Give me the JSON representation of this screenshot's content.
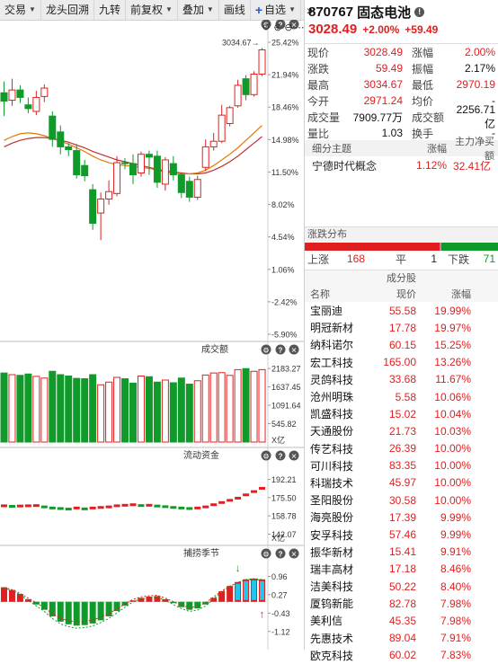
{
  "toolbar": {
    "items": [
      {
        "label": "交易",
        "caret": true
      },
      {
        "label": "龙头回溯",
        "caret": false
      },
      {
        "label": "九转",
        "caret": false
      },
      {
        "label": "前复权",
        "caret": true
      },
      {
        "label": "叠加",
        "caret": true
      },
      {
        "label": "画线",
        "caret": false
      }
    ],
    "zixuan_label": "自选",
    "more_label": "»"
  },
  "colors": {
    "up": "#e02020",
    "down": "#109a2a",
    "ma_short": "#e07b00",
    "ma_long": "#c0303a"
  },
  "chart_data": [
    {
      "type": "candlestick",
      "title": "",
      "y_tick_labels": [
        "25.42%",
        "21.94%",
        "18.46%",
        "14.98%",
        "11.50%",
        "8.02%",
        "4.54%",
        "1.06%",
        "-2.42%",
        "-5.90%"
      ],
      "ylim": [
        -5.9,
        25.42
      ],
      "high_marker": "3034.67",
      "candles": [
        {
          "o": 20.0,
          "c": 19.1,
          "h": 21.2,
          "l": 17.5
        },
        {
          "o": 19.2,
          "c": 20.3,
          "h": 21.5,
          "l": 18.6
        },
        {
          "o": 20.3,
          "c": 19.5,
          "h": 20.8,
          "l": 18.9
        },
        {
          "o": 18.7,
          "c": 18.3,
          "h": 19.5,
          "l": 17.8
        },
        {
          "o": 18.0,
          "c": 19.5,
          "h": 20.2,
          "l": 17.6
        },
        {
          "o": 19.6,
          "c": 20.5,
          "h": 20.9,
          "l": 19.0
        },
        {
          "o": 17.5,
          "c": 15.0,
          "h": 18.0,
          "l": 14.2
        },
        {
          "o": 15.8,
          "c": 14.2,
          "h": 16.5,
          "l": 13.4
        },
        {
          "o": 14.2,
          "c": 13.9,
          "h": 14.6,
          "l": 13.2
        },
        {
          "o": 13.8,
          "c": 11.2,
          "h": 14.5,
          "l": 10.8
        },
        {
          "o": 12.2,
          "c": 11.1,
          "h": 12.8,
          "l": 10.5
        },
        {
          "o": 9.6,
          "c": 6.0,
          "h": 10.2,
          "l": 5.3
        },
        {
          "o": 7.1,
          "c": 8.6,
          "h": 9.3,
          "l": 4.2
        },
        {
          "o": 8.6,
          "c": 9.4,
          "h": 10.6,
          "l": 8.0
        },
        {
          "o": 9.2,
          "c": 12.5,
          "h": 13.2,
          "l": 8.9
        },
        {
          "o": 12.5,
          "c": 12.4,
          "h": 13.0,
          "l": 11.8
        },
        {
          "o": 12.4,
          "c": 11.2,
          "h": 13.4,
          "l": 10.2
        },
        {
          "o": 11.4,
          "c": 13.4,
          "h": 13.7,
          "l": 11.0
        },
        {
          "o": 13.4,
          "c": 13.1,
          "h": 13.8,
          "l": 11.2
        },
        {
          "o": 13.2,
          "c": 10.4,
          "h": 13.8,
          "l": 9.8
        },
        {
          "o": 10.2,
          "c": 12.8,
          "h": 13.1,
          "l": 9.5
        },
        {
          "o": 12.4,
          "c": 11.2,
          "h": 13.2,
          "l": 10.6
        },
        {
          "o": 11.2,
          "c": 9.3,
          "h": 11.4,
          "l": 8.7
        },
        {
          "o": 10.5,
          "c": 8.8,
          "h": 11.0,
          "l": 8.3
        },
        {
          "o": 8.8,
          "c": 10.7,
          "h": 11.1,
          "l": 8.5
        },
        {
          "o": 12.0,
          "c": 14.2,
          "h": 15.0,
          "l": 11.6
        },
        {
          "o": 14.2,
          "c": 14.8,
          "h": 15.7,
          "l": 13.8
        },
        {
          "o": 14.8,
          "c": 17.6,
          "h": 18.7,
          "l": 14.6
        },
        {
          "o": 16.7,
          "c": 18.4,
          "h": 18.6,
          "l": 16.4
        },
        {
          "o": 18.6,
          "c": 20.8,
          "h": 21.4,
          "l": 18.4
        },
        {
          "o": 21.5,
          "c": 19.8,
          "h": 21.9,
          "l": 19.2
        },
        {
          "o": 19.8,
          "c": 22.0,
          "h": 22.3,
          "l": 19.6
        },
        {
          "o": 22.0,
          "c": 24.6,
          "h": 24.8,
          "l": 21.8
        }
      ],
      "ma_short": [
        14.9,
        15.3,
        15.6,
        15.7,
        15.6,
        15.4,
        15.1,
        14.8,
        14.5,
        14.1,
        13.7,
        13.2,
        12.8,
        12.5,
        12.3,
        12.2,
        12.1,
        12.0,
        11.9,
        11.7,
        11.5,
        11.4,
        11.3,
        11.3,
        11.4,
        11.7,
        12.2,
        12.8,
        13.4,
        14.1,
        14.9,
        15.7,
        16.5
      ],
      "ma_long": [
        14.2,
        14.6,
        14.9,
        15.1,
        15.2,
        15.2,
        15.1,
        14.9,
        14.7,
        14.4,
        14.1,
        13.7,
        13.4,
        13.1,
        12.8,
        12.6,
        12.4,
        12.2,
        12.0,
        11.8,
        11.6,
        11.5,
        11.4,
        11.3,
        11.3,
        11.4,
        11.7,
        12.1,
        12.6,
        13.2,
        13.9,
        14.6,
        15.3
      ]
    },
    {
      "type": "bar",
      "title": "成交额",
      "y_tick_labels": [
        "2183.27",
        "1637.45",
        "1091.64",
        "545.82"
      ],
      "unit_label": "X亿",
      "ylim": [
        0,
        2400
      ],
      "values": [
        2050,
        2000,
        1980,
        2020,
        1950,
        1900,
        2100,
        2000,
        1960,
        1890,
        1880,
        2000,
        1700,
        1780,
        1920,
        1880,
        1750,
        1960,
        1940,
        1780,
        1840,
        1760,
        1900,
        1720,
        1820,
        1990,
        2050,
        2060,
        1980,
        2150,
        2180,
        2100,
        2150
      ],
      "up": [
        false,
        true,
        false,
        false,
        true,
        true,
        false,
        false,
        false,
        false,
        false,
        false,
        true,
        true,
        true,
        false,
        false,
        true,
        false,
        false,
        true,
        false,
        false,
        false,
        true,
        true,
        true,
        true,
        true,
        true,
        false,
        true,
        true
      ]
    },
    {
      "type": "bar",
      "title": "流动资金",
      "y_tick_labels": [
        "192.21",
        "175.50",
        "158.78",
        "142.07"
      ],
      "unit_label": "X亿",
      "ylim": [
        140,
        200
      ],
      "values": [
        168,
        167.5,
        167.8,
        168,
        168.2,
        167,
        166,
        165.5,
        165,
        166,
        165.2,
        166,
        166.5,
        167,
        168,
        168.5,
        169,
        168.2,
        168.5,
        167.8,
        167.2,
        166.5,
        166,
        165.5,
        166,
        167,
        169,
        171,
        173,
        175,
        178,
        181,
        184
      ],
      "up": [
        true,
        false,
        true,
        true,
        true,
        false,
        false,
        false,
        false,
        true,
        false,
        true,
        true,
        true,
        true,
        true,
        true,
        false,
        true,
        false,
        false,
        false,
        false,
        false,
        true,
        true,
        true,
        true,
        true,
        true,
        true,
        true,
        true
      ]
    },
    {
      "type": "bar",
      "title": "捕捞季节",
      "y_tick_labels": [
        "0.96",
        "0.27",
        "-0.43",
        "-1.12"
      ],
      "ylim": [
        -1.4,
        1.25
      ],
      "values": [
        0.55,
        0.45,
        0.3,
        0.1,
        -0.1,
        -0.3,
        -0.55,
        -0.75,
        -0.85,
        -0.9,
        -0.88,
        -0.82,
        -0.7,
        -0.55,
        -0.35,
        -0.15,
        0.05,
        0.15,
        0.2,
        0.22,
        0.1,
        -0.05,
        -0.2,
        -0.3,
        -0.25,
        -0.1,
        0.15,
        0.4,
        0.6,
        0.75,
        0.85,
        0.88,
        0.85
      ]
    }
  ],
  "quote": {
    "code": "870767",
    "name": "固态电池",
    "price": "3028.49",
    "pct": "+2.00%",
    "change": "+59.49",
    "rows": [
      {
        "l1": "现价",
        "v1": "3028.49",
        "c1": "red",
        "l2": "涨幅",
        "v2": "2.00%",
        "c2": "red"
      },
      {
        "l1": "涨跌",
        "v1": "59.49",
        "c1": "red",
        "l2": "振幅",
        "v2": "2.17%",
        "c2": "blk"
      },
      {
        "l1": "最高",
        "v1": "3034.67",
        "c1": "red",
        "l2": "最低",
        "v2": "2970.19",
        "c2": "red"
      },
      {
        "l1": "今开",
        "v1": "2971.24",
        "c1": "red",
        "l2": "均价",
        "v2": "-",
        "c2": "blk"
      },
      {
        "l1": "成交量",
        "v1": "7909.77万",
        "c1": "blk",
        "l2": "成交额",
        "v2": "2256.71亿",
        "c2": "blk"
      },
      {
        "l1": "量比",
        "v1": "1.03",
        "c1": "blk",
        "l2": "换手",
        "v2": "-",
        "c2": "blk"
      }
    ]
  },
  "theme": {
    "head_col1": "细分主题",
    "head_col2": "涨幅",
    "head_col3": "主力净买额",
    "row_name": "宁德时代概念",
    "row_pct": "1.12%",
    "row_net": "32.41亿"
  },
  "distribution": {
    "title": "涨跌分布",
    "up_label": "上涨",
    "up_count": "168",
    "flat_label": "平",
    "flat_count": "1",
    "down_label": "下跌",
    "down_count": "71",
    "up_num": 168,
    "flat_num": 1,
    "down_num": 71
  },
  "constituents": {
    "title": "成分股",
    "col_name": "名称",
    "col_price": "现价",
    "col_change": "涨幅",
    "rows": [
      {
        "name": "宝丽迪",
        "price": "55.58",
        "chg": "19.99%"
      },
      {
        "name": "明冠新材",
        "price": "17.78",
        "chg": "19.97%"
      },
      {
        "name": "纳科诺尔",
        "price": "60.15",
        "chg": "15.25%"
      },
      {
        "name": "宏工科技",
        "price": "165.00",
        "chg": "13.26%"
      },
      {
        "name": "灵鸽科技",
        "price": "33.68",
        "chg": "11.67%"
      },
      {
        "name": "沧州明珠",
        "price": "5.58",
        "chg": "10.06%"
      },
      {
        "name": "凯盛科技",
        "price": "15.02",
        "chg": "10.04%"
      },
      {
        "name": "天通股份",
        "price": "21.73",
        "chg": "10.03%"
      },
      {
        "name": "传艺科技",
        "price": "26.39",
        "chg": "10.00%"
      },
      {
        "name": "可川科技",
        "price": "83.35",
        "chg": "10.00%"
      },
      {
        "name": "科瑞技术",
        "price": "45.97",
        "chg": "10.00%"
      },
      {
        "name": "圣阳股份",
        "price": "30.58",
        "chg": "10.00%"
      },
      {
        "name": "海亮股份",
        "price": "17.39",
        "chg": "9.99%"
      },
      {
        "name": "安孚科技",
        "price": "57.46",
        "chg": "9.99%"
      },
      {
        "name": "振华新材",
        "price": "15.41",
        "chg": "9.91%"
      },
      {
        "name": "瑞丰高材",
        "price": "17.18",
        "chg": "8.46%"
      },
      {
        "name": "洁美科技",
        "price": "50.22",
        "chg": "8.40%"
      },
      {
        "name": "厦钨新能",
        "price": "82.78",
        "chg": "7.98%"
      },
      {
        "name": "美利信",
        "price": "45.35",
        "chg": "7.98%"
      },
      {
        "name": "先惠技术",
        "price": "89.04",
        "chg": "7.91%"
      },
      {
        "name": "欧克科技",
        "price": "60.02",
        "chg": "7.83%"
      }
    ]
  }
}
